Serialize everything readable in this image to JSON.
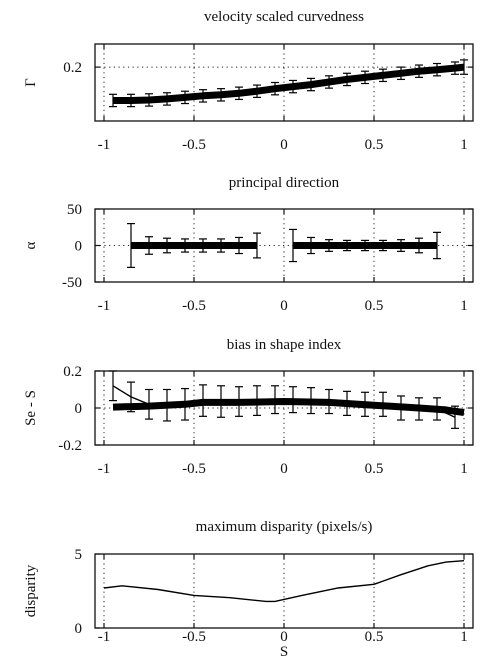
{
  "figure": {
    "shared_xlabel": "S"
  },
  "chart_data": [
    {
      "type": "line",
      "title": "velocity scaled curvedness",
      "ylabel": "Γ",
      "xlim": [
        -1.05,
        1.05
      ],
      "ylim": [
        0.095,
        0.245
      ],
      "x_ticks": [
        -1,
        -0.5,
        0,
        0.5,
        1
      ],
      "x_tick_labels": [
        "-1",
        "-0.5",
        "0",
        "0.5",
        "1"
      ],
      "y_ticks": [
        0.2
      ],
      "y_tick_labels": [
        "0.2"
      ],
      "grid": true,
      "series": [
        {
          "style": "thick-with-errorbars",
          "x": [
            -0.95,
            -0.85,
            -0.75,
            -0.65,
            -0.55,
            -0.45,
            -0.35,
            -0.25,
            -0.15,
            -0.05,
            0.05,
            0.15,
            0.25,
            0.35,
            0.45,
            0.55,
            0.65,
            0.75,
            0.85,
            0.95,
            1.0
          ],
          "y": [
            0.135,
            0.135,
            0.136,
            0.138,
            0.141,
            0.144,
            0.146,
            0.149,
            0.153,
            0.158,
            0.162,
            0.166,
            0.171,
            0.176,
            0.18,
            0.184,
            0.188,
            0.192,
            0.195,
            0.198,
            0.2
          ],
          "err": [
            0.012,
            0.012,
            0.012,
            0.012,
            0.012,
            0.012,
            0.012,
            0.012,
            0.012,
            0.012,
            0.012,
            0.012,
            0.012,
            0.012,
            0.012,
            0.012,
            0.012,
            0.012,
            0.012,
            0.012,
            0.014
          ]
        }
      ]
    },
    {
      "type": "line",
      "title": "principal direction",
      "ylabel": "α",
      "xlim": [
        -1.05,
        1.05
      ],
      "ylim": [
        -50,
        50
      ],
      "x_ticks": [
        -1,
        -0.5,
        0,
        0.5,
        1
      ],
      "x_tick_labels": [
        "-1",
        "-0.5",
        "0",
        "0.5",
        "1"
      ],
      "y_ticks": [
        50,
        0,
        -50
      ],
      "y_tick_labels": [
        "50",
        "0",
        "-50"
      ],
      "grid": true,
      "series": [
        {
          "style": "thick-with-errorbars",
          "x": [
            -0.85,
            -0.75,
            -0.65,
            -0.55,
            -0.45,
            -0.35,
            -0.25,
            -0.15
          ],
          "y": [
            0,
            0,
            0,
            0,
            0,
            0,
            0,
            0
          ],
          "err": [
            30,
            12,
            10,
            9,
            9,
            9,
            11,
            17
          ]
        },
        {
          "style": "thick-with-errorbars",
          "x": [
            0.05,
            0.15,
            0.25,
            0.35,
            0.45,
            0.55,
            0.65,
            0.75,
            0.85
          ],
          "y": [
            0,
            0,
            0,
            0,
            0,
            0,
            0,
            0,
            0
          ],
          "err": [
            22,
            11,
            8,
            7,
            7,
            7,
            8,
            10,
            18
          ]
        }
      ]
    },
    {
      "type": "line",
      "title": "bias in shape index",
      "ylabel": "Se - S",
      "xlim": [
        -1.05,
        1.05
      ],
      "ylim": [
        -0.2,
        0.2
      ],
      "x_ticks": [
        -1,
        -0.5,
        0,
        0.5,
        1
      ],
      "x_tick_labels": [
        "-1",
        "-0.5",
        "0",
        "0.5",
        "1"
      ],
      "y_ticks": [
        0.2,
        0,
        -0.2
      ],
      "y_tick_labels": [
        "0.2",
        "0",
        "-0.2"
      ],
      "grid": true,
      "series": [
        {
          "style": "thin-with-errorbars",
          "x": [
            -0.95,
            -0.85,
            -0.75,
            -0.65,
            -0.55,
            -0.45,
            -0.35,
            -0.25,
            -0.15,
            -0.05,
            0.05,
            0.15,
            0.25,
            0.35,
            0.45,
            0.55,
            0.65,
            0.75,
            0.85,
            0.95
          ],
          "y": [
            0.12,
            0.06,
            0.02,
            0.015,
            0.02,
            0.04,
            0.035,
            0.035,
            0.04,
            0.045,
            0.045,
            0.04,
            0.035,
            0.025,
            0.02,
            0.02,
            0.0,
            -0.005,
            -0.005,
            -0.05
          ],
          "err": [
            0.08,
            0.08,
            0.08,
            0.085,
            0.085,
            0.085,
            0.085,
            0.08,
            0.08,
            0.075,
            0.07,
            0.07,
            0.065,
            0.065,
            0.065,
            0.065,
            0.065,
            0.06,
            0.06,
            0.06
          ]
        },
        {
          "style": "thick",
          "x": [
            -0.95,
            -0.75,
            -0.55,
            -0.45,
            -0.25,
            0.0,
            0.25,
            0.5,
            0.75,
            0.9,
            1.0
          ],
          "y": [
            0.005,
            0.01,
            0.02,
            0.03,
            0.03,
            0.035,
            0.03,
            0.015,
            0.0,
            -0.01,
            -0.025
          ]
        }
      ]
    },
    {
      "type": "line",
      "title": "maximum disparity (pixels/s)",
      "ylabel": "disparity",
      "xlim": [
        -1.05,
        1.05
      ],
      "ylim": [
        0,
        5
      ],
      "x_ticks": [
        -1,
        -0.5,
        0,
        0.5,
        1
      ],
      "x_tick_labels": [
        "-1",
        "-0.5",
        "0",
        "0.5",
        "1"
      ],
      "y_ticks": [
        5,
        0
      ],
      "y_tick_labels": [
        "5",
        "0"
      ],
      "grid": true,
      "series": [
        {
          "style": "thin",
          "x": [
            -1.0,
            -0.9,
            -0.7,
            -0.5,
            -0.3,
            -0.1,
            -0.05,
            0.1,
            0.3,
            0.5,
            0.65,
            0.8,
            0.9,
            1.0
          ],
          "y": [
            2.7,
            2.85,
            2.6,
            2.2,
            2.05,
            1.8,
            1.8,
            2.2,
            2.7,
            2.95,
            3.6,
            4.2,
            4.45,
            4.55
          ]
        }
      ]
    }
  ]
}
